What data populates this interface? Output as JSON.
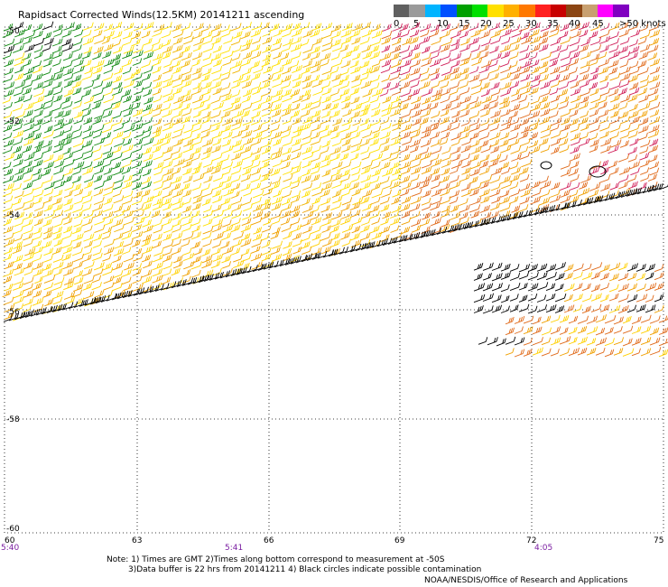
{
  "title": "Rapidsact Corrected Winds(12.5KM) 20141211 ascending",
  "legend": {
    "unit": "knots",
    "colors": [
      "#606060",
      "#9a9a9a",
      "#00b4ff",
      "#0050ff",
      "#00a000",
      "#00e000",
      "#ffe000",
      "#ffb000",
      "#ff7800",
      "#ff2020",
      "#c80000",
      "#8b4513",
      "#c8a070",
      "#ff00ff",
      "#8000c0"
    ],
    "labels": [
      "0",
      "5",
      "10",
      "15",
      "20",
      "25",
      "30",
      "35",
      "40",
      "45",
      ">50 knots"
    ]
  },
  "axes": {
    "lon_labels": [
      "60",
      "63",
      "66",
      "69",
      "72",
      "75"
    ],
    "lat_labels": [
      "-50",
      "-52",
      "-54",
      "-56",
      "-58",
      "-60"
    ],
    "time_labels": [
      "5:40",
      "5:41",
      "4:05"
    ]
  },
  "notes": [
    "Note: 1) Times are GMT 2)Times along bottom correspond to measurement at -50S",
    "3)Data buffer is 22 hrs from 20141211 4) Black circles indicate possible contamination"
  ],
  "credit": "NOAA/NESDIS/Office of Research and Applications"
}
